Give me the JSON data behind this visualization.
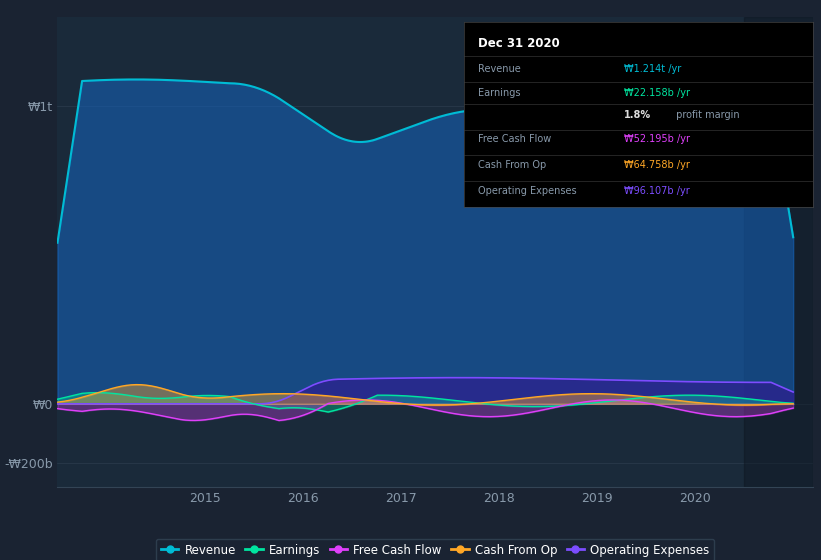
{
  "bg_color": "#1a2332",
  "plot_bg_color": "#1a2a3a",
  "revenue_color": "#00bcd4",
  "earnings_color": "#00e5a0",
  "free_cash_flow_color": "#e040fb",
  "cash_from_op_color": "#ffa726",
  "operating_expenses_color": "#7c4dff",
  "tooltip_title": "Dec 31 2020",
  "tooltip_rows": [
    {
      "label": "Revenue",
      "value": "₩1.214t /yr",
      "color": "#00bcd4"
    },
    {
      "label": "Earnings",
      "value": "₩22.158b /yr",
      "color": "#00e5a0"
    },
    {
      "label": "",
      "value": "1.8% profit margin",
      "color": "#ffffff"
    },
    {
      "label": "Free Cash Flow",
      "value": "₩52.195b /yr",
      "color": "#e040fb"
    },
    {
      "label": "Cash From Op",
      "value": "₩64.758b /yr",
      "color": "#ffa726"
    },
    {
      "label": "Operating Expenses",
      "value": "₩96.107b /yr",
      "color": "#7c4dff"
    }
  ],
  "ylabel_1t": "₩1t",
  "ylabel_0": "₩0",
  "ylabel_neg200b": "-₩200b",
  "ylim_min": -280000000000,
  "ylim_max": 1300000000000,
  "xlim_min": 2013.5,
  "xlim_max": 2021.2,
  "legend_items": [
    {
      "label": "Revenue",
      "color": "#00bcd4"
    },
    {
      "label": "Earnings",
      "color": "#00e5a0"
    },
    {
      "label": "Free Cash Flow",
      "color": "#e040fb"
    },
    {
      "label": "Cash From Op",
      "color": "#ffa726"
    },
    {
      "label": "Operating Expenses",
      "color": "#7c4dff"
    }
  ]
}
